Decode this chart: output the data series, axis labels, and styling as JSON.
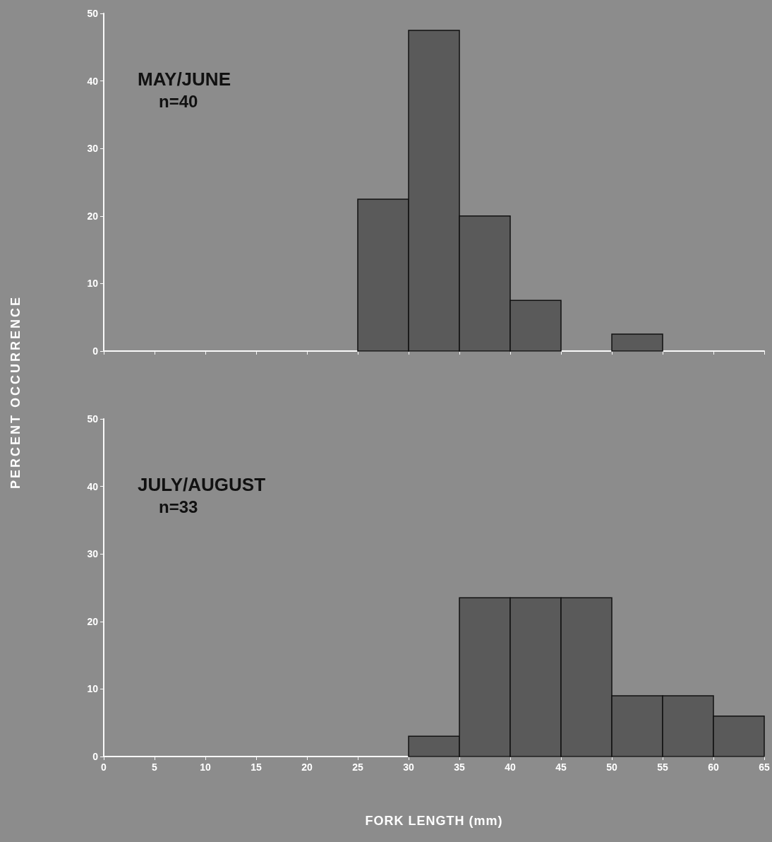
{
  "chart_data": [
    {
      "type": "histogram",
      "annotations": [
        "MAY/JUNE",
        "n=40"
      ],
      "ylabel": "PERCENT OCCURRENCE",
      "bins": [
        25,
        30,
        35,
        40,
        45,
        50,
        55
      ],
      "values": [
        22.5,
        47.5,
        20,
        7.5,
        0,
        2.5
      ],
      "color": "#5a5a5a",
      "xlim": [
        0,
        65
      ],
      "xticks": [
        0,
        5,
        10,
        15,
        20,
        25,
        30,
        35,
        40,
        45,
        50,
        55,
        60,
        65
      ],
      "ylim": [
        0,
        50
      ],
      "yticks": [
        0,
        10,
        20,
        30,
        40,
        50
      ],
      "tick_labels": "y",
      "grid": false
    },
    {
      "type": "histogram",
      "annotations": [
        "JULY/AUGUST",
        "n=33"
      ],
      "xlabel": "FORK LENGTH (mm)",
      "bins": [
        30,
        35,
        40,
        45,
        50,
        55,
        60,
        65
      ],
      "values": [
        3,
        23.5,
        23.5,
        23.5,
        9,
        9,
        6
      ],
      "color": "#5a5a5a",
      "xlim": [
        0,
        65
      ],
      "xticks": [
        0,
        5,
        10,
        15,
        20,
        25,
        30,
        35,
        40,
        45,
        50,
        55,
        60,
        65
      ],
      "ylim": [
        0,
        50
      ],
      "yticks": [
        0,
        10,
        20,
        30,
        40,
        50
      ],
      "grid": false
    }
  ]
}
